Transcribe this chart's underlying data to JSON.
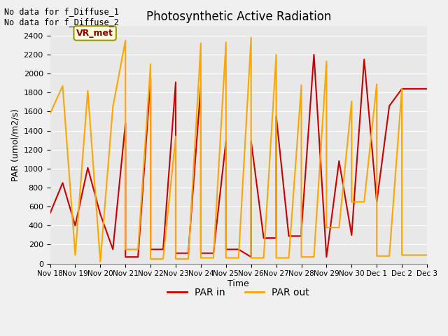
{
  "title": "Photosynthetic Active Radiation",
  "ylabel": "PAR (umol/m2/s)",
  "xlabel": "Time",
  "text_top_left": "No data for f_Diffuse_1\nNo data for f_Diffuse_2",
  "legend_label1": "PAR in",
  "legend_label2": "PAR out",
  "legend_box_label": "VR_met",
  "plot_bg_color": "#e8e8e8",
  "fig_bg_color": "#f0f0f0",
  "ylim": [
    0,
    2500
  ],
  "yticks": [
    0,
    200,
    400,
    600,
    800,
    1000,
    1200,
    1400,
    1600,
    1800,
    2000,
    2200,
    2400
  ],
  "color_par_in": "#cc0000",
  "color_par_out": "#ffa500",
  "x_labels": [
    "Nov 18",
    "Nov 19",
    "Nov 20",
    "Nov 21",
    "Nov 22",
    "Nov 23",
    "Nov 24",
    "Nov 25",
    "Nov 26",
    "Nov 27",
    "Nov 28",
    "Nov 29",
    "Nov 30",
    "Dec 1",
    "Dec 2",
    "Dec 3"
  ],
  "par_in_x": [
    0,
    0.5,
    1,
    1,
    1.5,
    2,
    2,
    2.5,
    3,
    3,
    3.5,
    4,
    4,
    4.5,
    5,
    5,
    5.5,
    6,
    6,
    6.5,
    7,
    7,
    7.5,
    8,
    8,
    8.5,
    9,
    9,
    9.5,
    10,
    10,
    10.5,
    11,
    11,
    11.5,
    12,
    12,
    12.5,
    13,
    13,
    13.5,
    14,
    14,
    14.5,
    15
  ],
  "par_in_y": [
    530,
    850,
    400,
    400,
    1010,
    520,
    520,
    150,
    1480,
    70,
    70,
    1950,
    150,
    150,
    1910,
    110,
    110,
    1870,
    110,
    110,
    1290,
    150,
    150,
    70,
    1290,
    270,
    270,
    1550,
    290,
    290,
    350,
    2200,
    70,
    70,
    1080,
    300,
    300,
    2150,
    650,
    650,
    1660,
    1840,
    1840,
    1840,
    1840
  ],
  "par_out_x": [
    0,
    0.5,
    1,
    1,
    1.5,
    2,
    2,
    2.5,
    3,
    3,
    3.5,
    4,
    4,
    4.5,
    5,
    5,
    5.5,
    6,
    6,
    6.5,
    7,
    7,
    7.5,
    8,
    8,
    8.5,
    9,
    9,
    9.5,
    10,
    10,
    10.5,
    11,
    11,
    11.5,
    12,
    12,
    12.5,
    13,
    13,
    13.5,
    14,
    14,
    14.5,
    15
  ],
  "par_out_y": [
    1580,
    1870,
    90,
    90,
    1820,
    20,
    20,
    1650,
    2350,
    150,
    150,
    2100,
    50,
    50,
    1340,
    50,
    50,
    2320,
    60,
    60,
    2330,
    60,
    60,
    2380,
    60,
    60,
    2200,
    60,
    60,
    1880,
    70,
    70,
    2130,
    380,
    380,
    1710,
    650,
    650,
    1890,
    80,
    80,
    1840,
    90,
    90,
    90
  ]
}
